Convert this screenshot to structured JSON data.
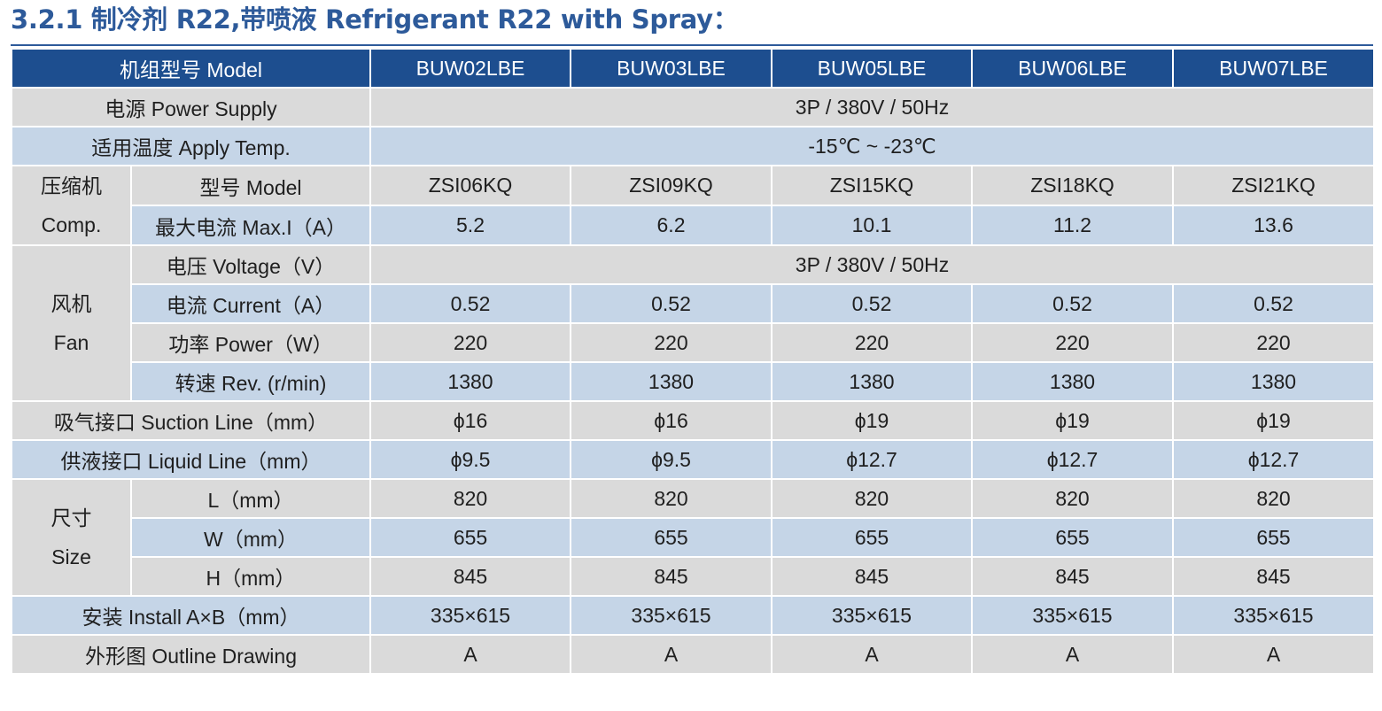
{
  "heading": "3.2.1 制冷剂 R22,带喷液 Refrigerant R22 with Spray：",
  "table": {
    "header_label": "机组型号 Model",
    "models": [
      "BUW02LBE",
      "BUW03LBE",
      "BUW05LBE",
      "BUW06LBE",
      "BUW07LBE"
    ],
    "power_supply": {
      "label": "电源 Power Supply",
      "value": "3P / 380V / 50Hz"
    },
    "apply_temp": {
      "label": "适用温度 Apply Temp.",
      "value": "-15℃ ~ -23℃"
    },
    "compressor": {
      "group_cn": "压缩机",
      "group_en": "Comp.",
      "model": {
        "label": "型号 Model",
        "values": [
          "ZSI06KQ",
          "ZSI09KQ",
          "ZSI15KQ",
          "ZSI18KQ",
          "ZSI21KQ"
        ]
      },
      "max_current": {
        "label": "最大电流 Max.I（A）",
        "values": [
          "5.2",
          "6.2",
          "10.1",
          "11.2",
          "13.6"
        ]
      }
    },
    "fan": {
      "group_cn": "风机",
      "group_en": "Fan",
      "voltage": {
        "label": "电压 Voltage（V）",
        "value": "3P / 380V / 50Hz"
      },
      "current": {
        "label": "电流 Current（A）",
        "values": [
          "0.52",
          "0.52",
          "0.52",
          "0.52",
          "0.52"
        ]
      },
      "power": {
        "label": "功率 Power（W）",
        "values": [
          "220",
          "220",
          "220",
          "220",
          "220"
        ]
      },
      "speed": {
        "label": "转速 Rev. (r/min)",
        "values": [
          "1380",
          "1380",
          "1380",
          "1380",
          "1380"
        ]
      }
    },
    "suction_line": {
      "label": "吸气接口 Suction Line（mm）",
      "values": [
        "ϕ16",
        "ϕ16",
        "ϕ19",
        "ϕ19",
        "ϕ19"
      ]
    },
    "liquid_line": {
      "label": "供液接口 Liquid Line（mm）",
      "values": [
        "ϕ9.5",
        "ϕ9.5",
        "ϕ12.7",
        "ϕ12.7",
        "ϕ12.7"
      ]
    },
    "size": {
      "group_cn": "尺寸",
      "group_en": "Size",
      "length": {
        "label": "L（mm）",
        "values": [
          "820",
          "820",
          "820",
          "820",
          "820"
        ]
      },
      "width": {
        "label": "W（mm）",
        "values": [
          "655",
          "655",
          "655",
          "655",
          "655"
        ]
      },
      "height": {
        "label": "H（mm）",
        "values": [
          "845",
          "845",
          "845",
          "845",
          "845"
        ]
      }
    },
    "install": {
      "label": "安装 Install A×B（mm）",
      "values": [
        "335×615",
        "335×615",
        "335×615",
        "335×615",
        "335×615"
      ]
    },
    "outline": {
      "label": "外形图 Outline Drawing",
      "values": [
        "A",
        "A",
        "A",
        "A",
        "A"
      ]
    }
  }
}
